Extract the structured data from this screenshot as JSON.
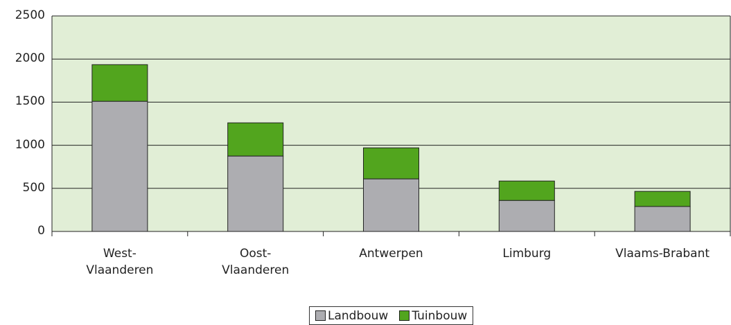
{
  "chart_data": {
    "type": "stacked_bar",
    "categories": [
      "West-\nVlaanderen",
      "Oost-\nVlaanderen",
      "Antwerpen",
      "Limburg",
      "Vlaams-Brabant"
    ],
    "series": [
      {
        "name": "Landbouw",
        "color": "#adadb1",
        "values": [
          1510,
          875,
          610,
          360,
          290
        ]
      },
      {
        "name": "Tuinbouw",
        "color": "#52a51e",
        "values": [
          425,
          385,
          360,
          225,
          175
        ]
      }
    ],
    "ylim": [
      0,
      2500
    ],
    "yticks": [
      0,
      500,
      1000,
      1500,
      2000,
      2500
    ],
    "grid": true,
    "plot_background": "#e1eed6",
    "legend": "bottom"
  }
}
